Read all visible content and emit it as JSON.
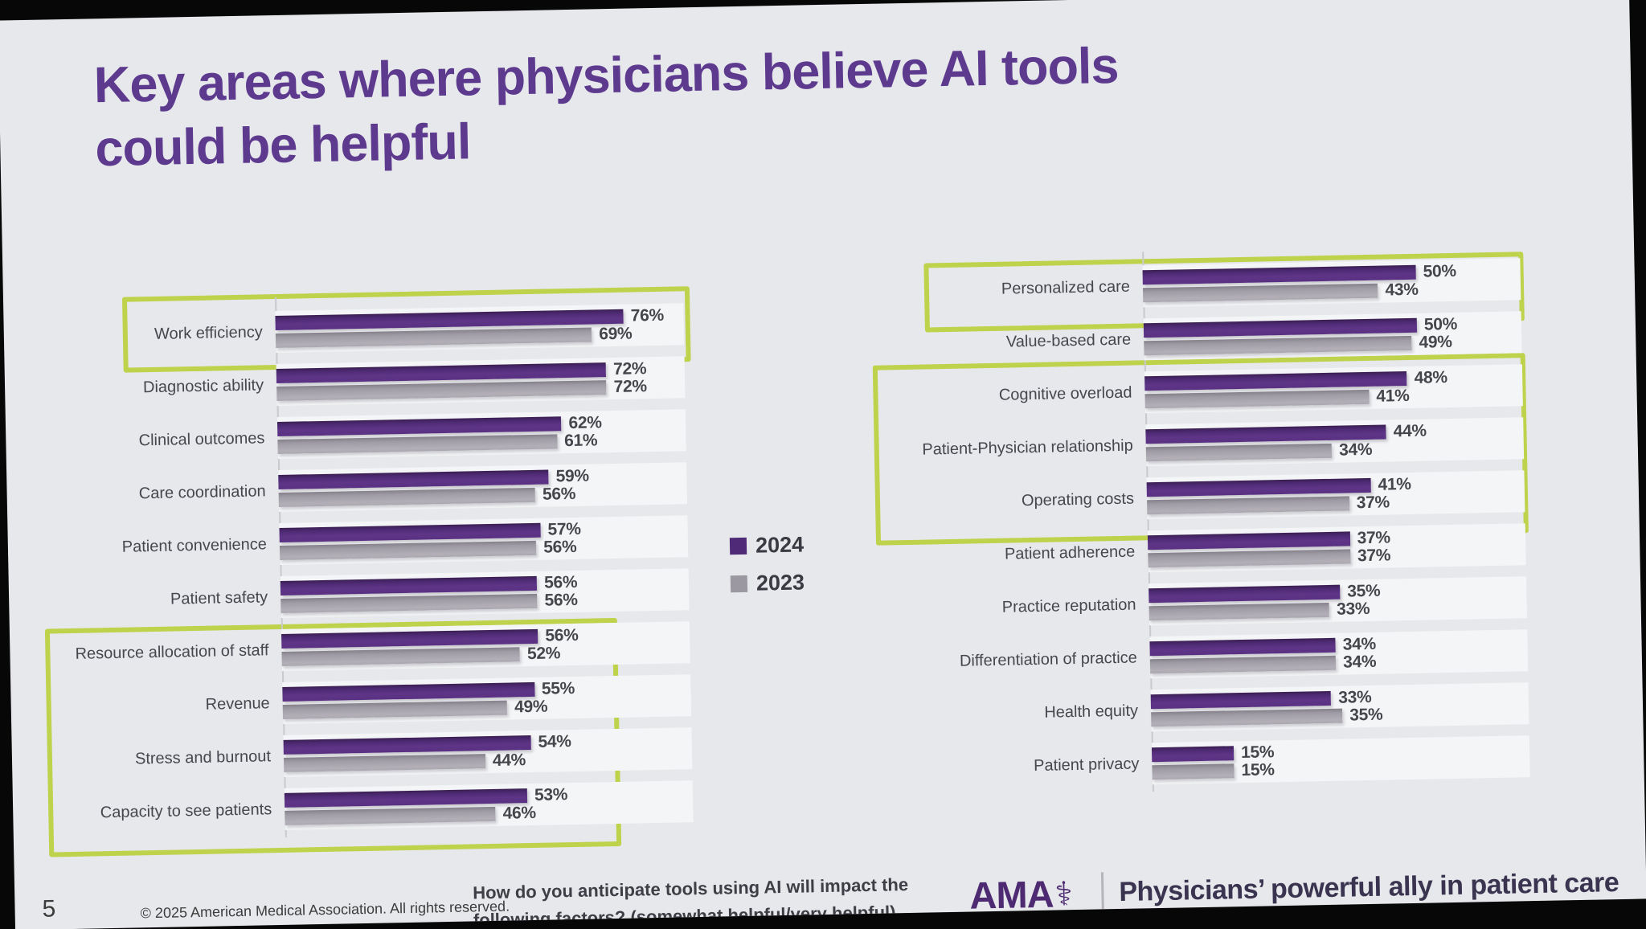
{
  "slide": {
    "title": "Key areas where physicians believe AI tools\ncould be helpful",
    "page_number": "5",
    "copyright": "© 2025 American Medical Association. All rights reserved.",
    "source_question": "How do you anticipate tools using AI will impact the following factors? (somewhat helpful/very helpful)",
    "brand": {
      "logo_text": "AMA",
      "caduceus_icon": "⚕",
      "tagline": "Physicians’ powerful ally in patient care"
    }
  },
  "legend": {
    "items": [
      {
        "label": "2024",
        "color": "#4f2a76"
      },
      {
        "label": "2023",
        "color": "#9c98a2"
      }
    ],
    "position": "center-between-charts"
  },
  "colors": {
    "bar_2024": "#56307f",
    "bar_2023": "#a7a3ac",
    "highlight_box": "#bed24c",
    "title_text": "#5d3a8e",
    "slide_background": "#e6e8eb"
  },
  "chart_data": [
    {
      "type": "bar",
      "orientation": "horizontal",
      "series_names": [
        "2024",
        "2023"
      ],
      "unit": "%",
      "xlim": [
        0,
        80
      ],
      "grid": false,
      "highlight_row_ranges": [
        [
          0,
          0
        ],
        [
          6,
          9
        ]
      ],
      "rows": [
        {
          "label": "Work efficiency",
          "values": [
            76,
            69
          ],
          "labels": [
            "76%",
            "69%"
          ]
        },
        {
          "label": "Diagnostic ability",
          "values": [
            72,
            72
          ],
          "labels": [
            "72%",
            "72%"
          ]
        },
        {
          "label": "Clinical outcomes",
          "values": [
            62,
            61
          ],
          "labels": [
            "62%",
            "61%"
          ]
        },
        {
          "label": "Care coordination",
          "values": [
            59,
            56
          ],
          "labels": [
            "59%",
            "56%"
          ]
        },
        {
          "label": "Patient convenience",
          "values": [
            57,
            56
          ],
          "labels": [
            "57%",
            "56%"
          ]
        },
        {
          "label": "Patient safety",
          "values": [
            56,
            56
          ],
          "labels": [
            "56%",
            "56%"
          ]
        },
        {
          "label": "Resource allocation of staff",
          "values": [
            56,
            52
          ],
          "labels": [
            "56%",
            "52%"
          ]
        },
        {
          "label": "Revenue",
          "values": [
            55,
            49
          ],
          "labels": [
            "55%",
            "49%"
          ]
        },
        {
          "label": "Stress and burnout",
          "values": [
            54,
            44
          ],
          "labels": [
            "54%",
            "44%"
          ]
        },
        {
          "label": "Capacity to see patients",
          "values": [
            53,
            46
          ],
          "labels": [
            "53%",
            "46%"
          ]
        }
      ]
    },
    {
      "type": "bar",
      "orientation": "horizontal",
      "series_names": [
        "2024",
        "2023"
      ],
      "unit": "%",
      "xlim": [
        0,
        60
      ],
      "grid": false,
      "highlight_row_ranges": [
        [
          0,
          0
        ],
        [
          2,
          4
        ]
      ],
      "rows": [
        {
          "label": "Personalized care",
          "values": [
            50,
            43
          ],
          "labels": [
            "50%",
            "43%"
          ]
        },
        {
          "label": "Value-based care",
          "values": [
            50,
            49
          ],
          "labels": [
            "50%",
            "49%"
          ]
        },
        {
          "label": "Cognitive overload",
          "values": [
            48,
            41
          ],
          "labels": [
            "48%",
            "41%"
          ]
        },
        {
          "label": "Patient-Physician relationship",
          "values": [
            44,
            34
          ],
          "labels": [
            "44%",
            "34%"
          ]
        },
        {
          "label": "Operating costs",
          "values": [
            41,
            37
          ],
          "labels": [
            "41%",
            "37%"
          ]
        },
        {
          "label": "Patient adherence",
          "values": [
            37,
            37
          ],
          "labels": [
            "37%",
            "37%"
          ]
        },
        {
          "label": "Practice reputation",
          "values": [
            35,
            33
          ],
          "labels": [
            "35%",
            "33%"
          ]
        },
        {
          "label": "Differentiation of practice",
          "values": [
            34,
            34
          ],
          "labels": [
            "34%",
            "34%"
          ]
        },
        {
          "label": "Health equity",
          "values": [
            33,
            35
          ],
          "labels": [
            "33%",
            "35%"
          ]
        },
        {
          "label": "Patient privacy",
          "values": [
            15,
            15
          ],
          "labels": [
            "15%",
            "15%"
          ]
        }
      ]
    }
  ]
}
